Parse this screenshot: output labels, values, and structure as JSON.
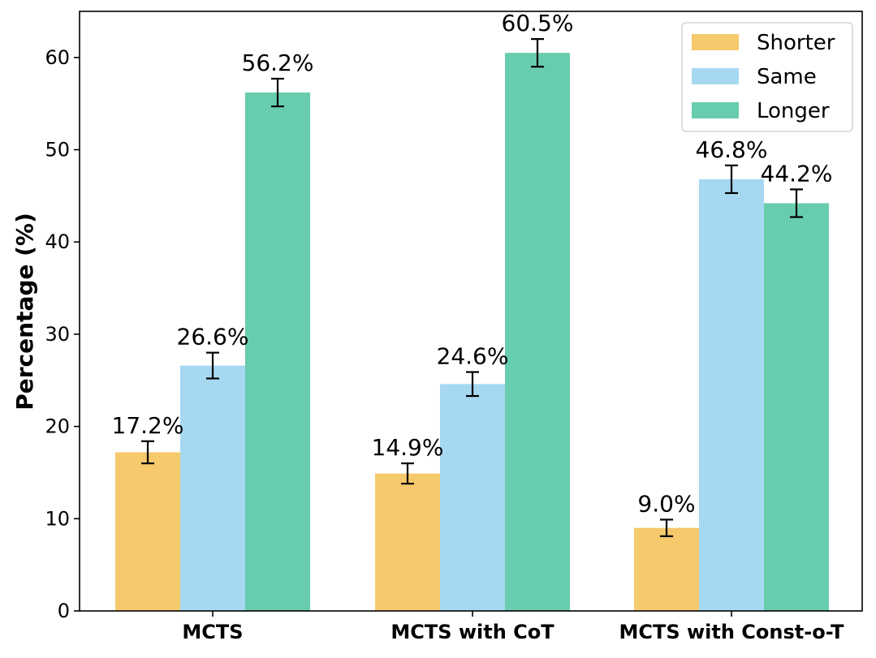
{
  "chart_data": {
    "type": "bar",
    "title": "",
    "xlabel": "",
    "ylabel": "Percentage (%)",
    "ylim": [
      0,
      65
    ],
    "yticks": [
      0,
      10,
      20,
      30,
      40,
      50,
      60
    ],
    "categories": [
      "MCTS",
      "MCTS with CoT",
      "MCTS with Const-o-T"
    ],
    "series": [
      {
        "name": "Shorter",
        "color": "#F5C96C",
        "values": [
          17.2,
          14.9,
          9.0
        ],
        "errors": [
          1.2,
          1.1,
          0.9
        ],
        "labels": [
          "17.2%",
          "14.9%",
          "9.0%"
        ]
      },
      {
        "name": "Same",
        "color": "#A6D8F2",
        "values": [
          26.6,
          24.6,
          46.8
        ],
        "errors": [
          1.4,
          1.3,
          1.5
        ],
        "labels": [
          "26.6%",
          "24.6%",
          "46.8%"
        ]
      },
      {
        "name": "Longer",
        "color": "#68CCAE",
        "values": [
          56.2,
          60.5,
          44.2
        ],
        "errors": [
          1.5,
          1.5,
          1.5
        ],
        "labels": [
          "56.2%",
          "60.5%",
          "44.2%"
        ]
      }
    ],
    "legend_position": "top-right",
    "grid": false,
    "error_bars": true
  }
}
